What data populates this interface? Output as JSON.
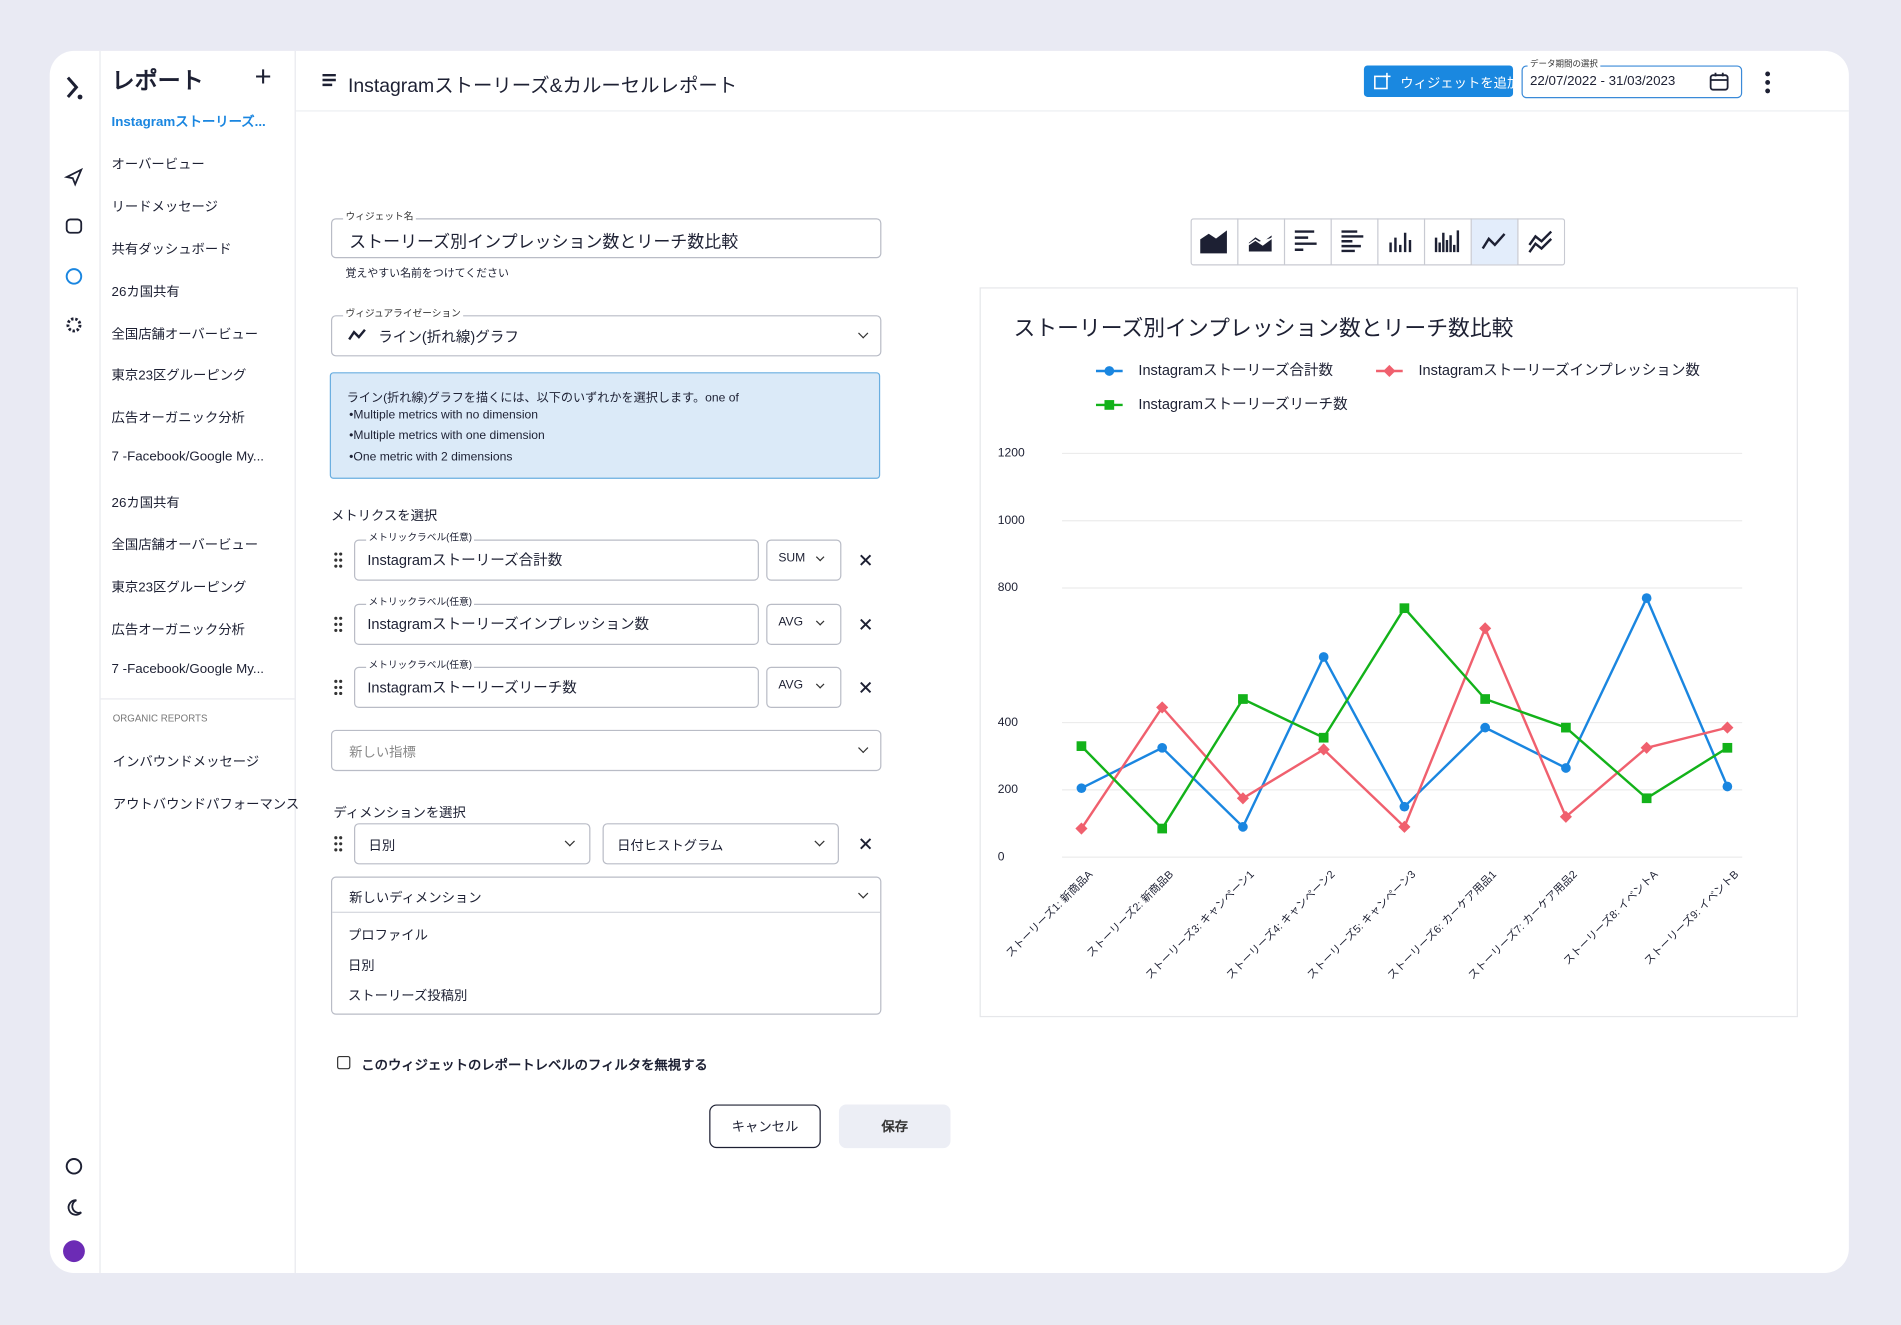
{
  "sidebar": {
    "title": "レポート",
    "items": [
      "Instagramストーリーズ...",
      "オーバービュー",
      "リードメッセージ",
      "共有ダッシュボード",
      "26カ国共有",
      "全国店舗オーバービュー",
      "東京23区グルーピング",
      "広告オーガニック分析",
      "7 -Facebook/Google My...",
      "26カ国共有",
      "全国店舗オーバービュー",
      "東京23区グルーピング",
      "広告オーガニック分析",
      "7 -Facebook/Google My..."
    ],
    "section": "ORGANIC REPORTS",
    "organic_items": [
      "インバウンドメッセージ",
      "アウトバウンドパフォーマンス"
    ]
  },
  "header": {
    "title": "Instagramストーリーズ&カルーセルレポート",
    "add_widget": "ウィジェットを追加",
    "date_label": "データ期間の選択",
    "date_range": "22/07/2022 - 31/03/2023"
  },
  "form": {
    "name_label": "ウィジェット名",
    "name_value": "ストーリーズ別インプレッション数とリーチ数比較",
    "name_help": "覚えやすい名前をつけてください",
    "viz_label": "ヴィジュアライゼーション",
    "viz_value": "ライン(折れ線)グラフ",
    "info_lines": [
      "ライン(折れ線)グラフを描くには、以下のいずれかを選択します。one of",
      "•Multiple metrics with no dimension",
      "•Multiple metrics with one dimension",
      "•One metric with 2 dimensions"
    ],
    "metrics_title": "メトリクスを選択",
    "metrics": [
      {
        "label": "メトリックラベル(任意)",
        "value": "Instagramストーリーズ合計数",
        "agg": "SUM"
      },
      {
        "label": "メトリックラベル(任意)",
        "value": "Instagramストーリーズインプレッション数",
        "agg": "AVG"
      },
      {
        "label": "メトリックラベル(任意)",
        "value": "Instagramストーリーズリーチ数",
        "agg": "AVG"
      }
    ],
    "new_metric": "新しい指標",
    "dimensions_title": "ディメンションを選択",
    "dimensions": [
      "日別",
      "日付ヒストグラム"
    ],
    "new_dimension": "新しいディメンション",
    "dimension_options": [
      "プロファイル",
      "日別",
      "ストーリーズ投稿別"
    ],
    "ignore_filter": "このウィジェットのレポートレベルのフィルタを無視する",
    "cancel": "キャンセル",
    "save": "保存"
  },
  "chart_data": {
    "type": "line",
    "title": "ストーリーズ別インプレッション数とリーチ数比較",
    "categories": [
      "ストーリーズ1: 新商品A",
      "ストーリーズ2: 新商品B",
      "ストーリーズ3: キャンペーン1",
      "ストーリーズ4: キャンペーン2",
      "ストーリーズ5: キャンペーン3",
      "ストーリーズ6: カーケア用品1",
      "ストーリーズ7: カーケア用品2",
      "ストーリーズ8: イベントA",
      "ストーリーズ9: イベントB"
    ],
    "series": [
      {
        "name": "Instagramストーリーズ合計数",
        "color": "#1a86e0",
        "marker": "circle",
        "values": [
          205,
          325,
          90,
          595,
          150,
          385,
          265,
          770,
          210
        ]
      },
      {
        "name": "Instagramストーリーズインプレッション数",
        "color": "#f0606e",
        "marker": "diamond",
        "values": [
          85,
          445,
          175,
          320,
          90,
          680,
          120,
          325,
          385
        ]
      },
      {
        "name": "Instagramストーリーズリーチ数",
        "color": "#13b21a",
        "marker": "square",
        "values": [
          330,
          85,
          470,
          355,
          740,
          470,
          385,
          175,
          325
        ]
      }
    ],
    "ylim": [
      0,
      1200
    ],
    "yticks": [
      0,
      200,
      400,
      800,
      1000,
      1200
    ],
    "grid": true
  }
}
